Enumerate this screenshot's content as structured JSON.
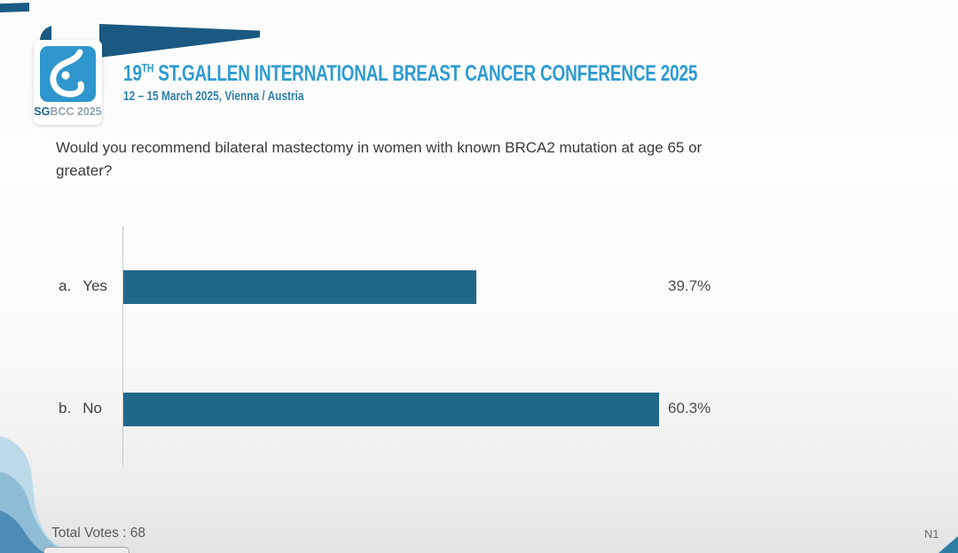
{
  "header": {
    "logo": {
      "sg": "SG",
      "bcc": "BCC 2025",
      "icon": "sgbcc-breast-icon",
      "square_color": "#2e96cc"
    },
    "title_num": "19",
    "title_sup": "TH",
    "title_rest": "ST.GALLEN INTERNATIONAL BREAST CANCER CONFERENCE 2025",
    "subtitle": "12 – 15 March 2025, Vienna / Austria"
  },
  "question": {
    "text": "Would you recommend bilateral mastectomy in women with known BRCA2 mutation at age 65 or greater?",
    "line1": "Would you recommend bilateral mastectomy in women with known BRCA2 mutation at age 65 or",
    "line2": "greater?"
  },
  "chart_data": {
    "type": "bar",
    "orientation": "horizontal",
    "categories": [
      "Yes",
      "No"
    ],
    "values": [
      39.7,
      60.3
    ],
    "items": [
      {
        "prefix": "a.",
        "label": "Yes",
        "value": 39.7,
        "value_label": "39.7%"
      },
      {
        "prefix": "b.",
        "label": "No",
        "value": 60.3,
        "value_label": "60.3%"
      }
    ],
    "title": "",
    "xlabel": "",
    "ylabel": "",
    "grid": false,
    "legend": false,
    "bar_color": "#20688a",
    "axis_color": "#c9c9c9"
  },
  "footer": {
    "total_votes": "Total Votes : 68",
    "slide_code": "N1"
  },
  "colors": {
    "title_blue": "#2e9bd2",
    "subtitle_blue": "#2e7fa6",
    "swoosh_navy": "#1a5a82",
    "logo_blue": "#2e96cc",
    "bar_teal": "#20688a",
    "corner_triangle_teal": "#2f7fa3"
  }
}
